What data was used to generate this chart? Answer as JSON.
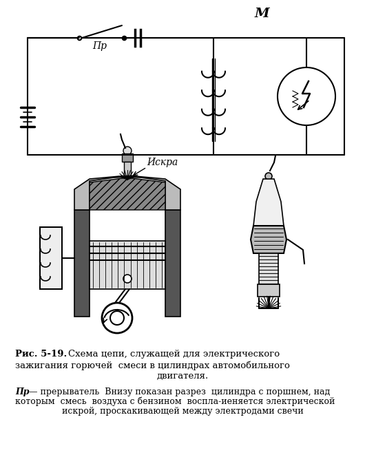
{
  "bg_color": "#ffffff",
  "line_color": "#000000",
  "caption_bold": "Рис. 5-19.",
  "caption_main": " Схема цепи, служащей для электрического\nзажигания горючей смеси в цилиндрах автомобильного\nдвигателя.",
  "caption_italic_pr": "Пр",
  "caption_rest": " — прерыватель Внизу показан разрез  цилиндра с поршнем, над\nкоторым смесь воздуха с бензином воспла­иеняется электрической\nискрой, проскакивающей между электродами свечи",
  "label_pr": "Пр",
  "label_m": "М",
  "label_iskra": "Искра"
}
